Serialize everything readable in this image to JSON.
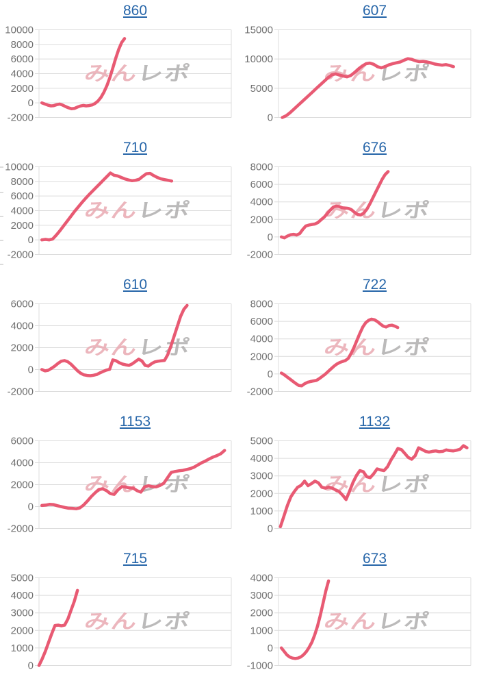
{
  "page": {
    "background": "#ffffff"
  },
  "style": {
    "line_color": "#e85a73",
    "grid_color": "#dcdcdc",
    "label_color": "#707070",
    "title_color": "#2766a9",
    "watermark_pink": "#e9aab2",
    "watermark_gray": "#b0aeae"
  },
  "watermark": {
    "text_pink": "みん",
    "text_gray": "レポ"
  },
  "clipped_ticks": {
    "ys": [
      243,
      280,
      315,
      350,
      385
    ]
  },
  "chart_data": [
    {
      "type": "line",
      "title": "860",
      "xlabel": "",
      "ylabel": "",
      "legend": "none",
      "grid": true,
      "ylim": [
        -2000,
        10000
      ],
      "yticks": [
        10000,
        8000,
        6000,
        4000,
        2000,
        0,
        -2000
      ],
      "x_range": [
        0.015,
        0.445
      ],
      "values": [
        0,
        -150,
        -300,
        -420,
        -380,
        -250,
        -160,
        -300,
        -500,
        -680,
        -800,
        -760,
        -580,
        -430,
        -350,
        -420,
        -370,
        -280,
        -80,
        250,
        750,
        1450,
        2350,
        3450,
        4750,
        6100,
        7300,
        8250,
        8800
      ]
    },
    {
      "type": "line",
      "title": "607",
      "xlabel": "",
      "ylabel": "",
      "legend": "none",
      "grid": true,
      "ylim": [
        0,
        15000
      ],
      "yticks": [
        15000,
        10000,
        5000,
        0
      ],
      "x_range": [
        0.02,
        0.91
      ],
      "values": [
        0,
        300,
        800,
        1400,
        2000,
        2600,
        3200,
        3800,
        4400,
        5000,
        5600,
        6200,
        6800,
        7300,
        7450,
        7250,
        7100,
        6950,
        7200,
        7700,
        8300,
        8800,
        9200,
        9300,
        9100,
        8700,
        8500,
        8700,
        9000,
        9200,
        9350,
        9500,
        9800,
        10050,
        9950,
        9700,
        9550,
        9600,
        9500,
        9350,
        9150,
        9050,
        8950,
        9050,
        8900,
        8700
      ]
    },
    {
      "type": "line",
      "title": "710",
      "xlabel": "",
      "ylabel": "",
      "legend": "none",
      "grid": true,
      "ylim": [
        -2000,
        10000
      ],
      "yticks": [
        10000,
        8000,
        6000,
        4000,
        2000,
        0,
        -2000
      ],
      "x_range": [
        0.015,
        0.69
      ],
      "values": [
        0,
        60,
        0,
        120,
        650,
        1250,
        1900,
        2550,
        3200,
        3850,
        4450,
        5050,
        5600,
        6150,
        6650,
        7150,
        7650,
        8150,
        8650,
        9150,
        8850,
        8750,
        8550,
        8350,
        8200,
        8100,
        8150,
        8300,
        8700,
        9050,
        9100,
        8800,
        8550,
        8350,
        8250,
        8150,
        8050
      ]
    },
    {
      "type": "line",
      "title": "676",
      "xlabel": "",
      "ylabel": "",
      "legend": "none",
      "grid": true,
      "ylim": [
        -2000,
        8000
      ],
      "yticks": [
        8000,
        6000,
        4000,
        2000,
        0,
        -2000
      ],
      "x_range": [
        0.015,
        0.57
      ],
      "values": [
        0,
        -100,
        100,
        250,
        300,
        220,
        380,
        850,
        1250,
        1350,
        1420,
        1480,
        1650,
        1950,
        2250,
        2650,
        3050,
        3400,
        3520,
        3450,
        3320,
        3300,
        3260,
        3100,
        2800,
        2560,
        2500,
        2720,
        3150,
        3750,
        4450,
        5150,
        5850,
        6550,
        7100,
        7450
      ]
    },
    {
      "type": "line",
      "title": "610",
      "xlabel": "",
      "ylabel": "",
      "legend": "none",
      "grid": true,
      "ylim": [
        -2000,
        6000
      ],
      "yticks": [
        6000,
        4000,
        2000,
        0,
        -2000
      ],
      "x_range": [
        0.015,
        0.77
      ],
      "values": [
        0,
        -120,
        -60,
        120,
        320,
        560,
        760,
        820,
        720,
        500,
        200,
        -100,
        -330,
        -480,
        -540,
        -560,
        -520,
        -450,
        -300,
        -170,
        -50,
        20,
        880,
        800,
        620,
        500,
        430,
        380,
        520,
        730,
        950,
        780,
        380,
        320,
        540,
        700,
        760,
        800,
        830,
        1350,
        2150,
        3050,
        3950,
        4850,
        5500,
        5850
      ]
    },
    {
      "type": "line",
      "title": "722",
      "xlabel": "",
      "ylabel": "",
      "legend": "none",
      "grid": true,
      "ylim": [
        -2000,
        8000
      ],
      "yticks": [
        8000,
        6000,
        4000,
        2000,
        0,
        -2000
      ],
      "x_range": [
        0.015,
        0.62
      ],
      "values": [
        100,
        -100,
        -350,
        -600,
        -850,
        -1100,
        -1320,
        -1350,
        -1120,
        -950,
        -870,
        -800,
        -740,
        -540,
        -300,
        -50,
        260,
        560,
        860,
        1120,
        1300,
        1420,
        1520,
        1780,
        2350,
        3050,
        3850,
        4650,
        5350,
        5850,
        6120,
        6250,
        6180,
        5980,
        5700,
        5450,
        5350,
        5520,
        5560,
        5450,
        5300
      ]
    },
    {
      "type": "line",
      "title": "1153",
      "xlabel": "",
      "ylabel": "",
      "legend": "none",
      "grid": true,
      "ylim": [
        -2000,
        6000
      ],
      "yticks": [
        6000,
        4000,
        2000,
        0,
        -2000
      ],
      "x_range": [
        0.015,
        0.965
      ],
      "values": [
        100,
        130,
        200,
        180,
        80,
        0,
        -80,
        -150,
        -160,
        -200,
        -120,
        150,
        520,
        920,
        1260,
        1560,
        1620,
        1450,
        1180,
        1120,
        1520,
        1820,
        1780,
        1700,
        1680,
        1450,
        1320,
        1800,
        1900,
        1820,
        1800,
        1920,
        2120,
        2620,
        3120,
        3200,
        3260,
        3300,
        3380,
        3460,
        3600,
        3800,
        4000,
        4160,
        4350,
        4520,
        4650,
        4820,
        5120
      ]
    },
    {
      "type": "line",
      "title": "1132",
      "xlabel": "",
      "ylabel": "",
      "legend": "none",
      "grid": true,
      "ylim": [
        0,
        5000
      ],
      "yticks": [
        5000,
        4000,
        3000,
        2000,
        1000,
        0
      ],
      "x_range": [
        0.01,
        0.98
      ],
      "values": [
        100,
        700,
        1300,
        1800,
        2100,
        2350,
        2460,
        2700,
        2440,
        2560,
        2700,
        2600,
        2350,
        2300,
        2360,
        2300,
        2200,
        2100,
        1900,
        1650,
        2120,
        2620,
        3020,
        3300,
        3240,
        2950,
        2900,
        3120,
        3400,
        3340,
        3300,
        3520,
        3900,
        4220,
        4560,
        4500,
        4280,
        4050,
        3950,
        4150,
        4600,
        4500,
        4400,
        4350,
        4400,
        4420,
        4380,
        4400,
        4480,
        4440,
        4420,
        4460,
        4520,
        4720,
        4600
      ]
    },
    {
      "type": "line",
      "title": "715",
      "xlabel": "",
      "ylabel": "",
      "legend": "none",
      "grid": true,
      "ylim": [
        0,
        5000
      ],
      "yticks": [
        5000,
        4000,
        3000,
        2000,
        1000,
        0
      ],
      "x_range": [
        0.0,
        0.2
      ],
      "values": [
        0,
        380,
        820,
        1320,
        1820,
        2280,
        2300,
        2260,
        2300,
        2650,
        3150,
        3650,
        4280
      ]
    },
    {
      "type": "line",
      "title": "673",
      "xlabel": "",
      "ylabel": "",
      "legend": "none",
      "grid": true,
      "ylim": [
        -1000,
        4000
      ],
      "yticks": [
        4000,
        3000,
        2000,
        1000,
        0,
        -1000
      ],
      "x_range": [
        0.015,
        0.26
      ],
      "values": [
        0,
        -200,
        -400,
        -520,
        -580,
        -600,
        -580,
        -510,
        -390,
        -210,
        30,
        330,
        730,
        1230,
        1830,
        2530,
        3230,
        3820
      ]
    }
  ]
}
